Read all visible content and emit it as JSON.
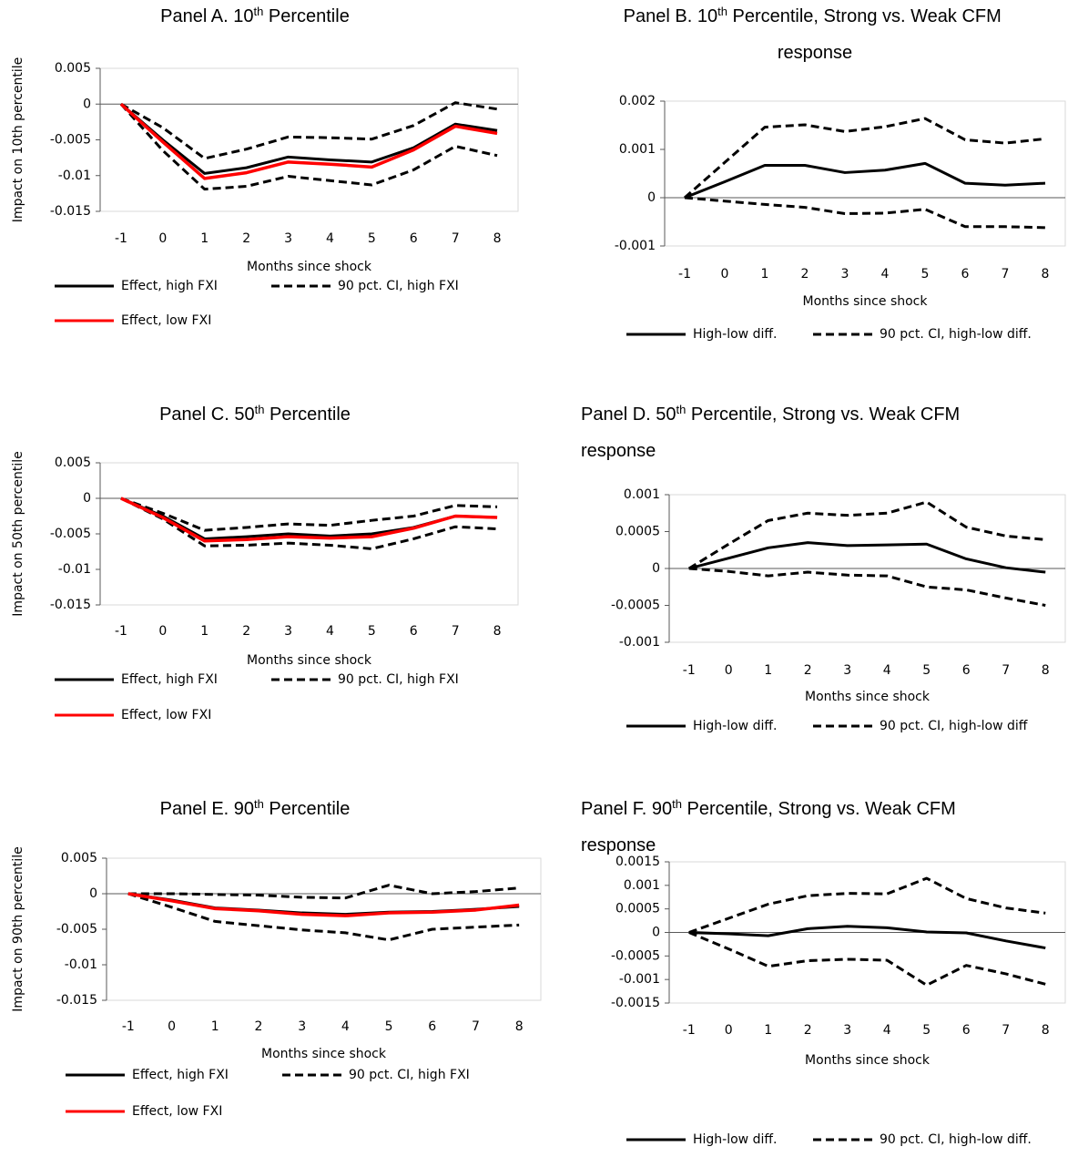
{
  "chart_data": [
    {
      "type": "line",
      "title": "Panel A. 10th Percentile",
      "x": [
        -1,
        0,
        1,
        2,
        3,
        4,
        5,
        6,
        7,
        8
      ],
      "xlim": [
        -1.5,
        8.5
      ],
      "ylim": [
        -0.015,
        0.005
      ],
      "yticks": [
        0.005,
        0,
        -0.005,
        -0.01,
        -0.015
      ],
      "xlabel": "Months since shock",
      "ylabel": "Impact on 10th percentile",
      "series": [
        {
          "name": "Effect, high FXI",
          "color": "#000000",
          "line_style": "solid",
          "values": [
            0,
            -0.005,
            -0.0097,
            -0.0089,
            -0.0074,
            -0.0078,
            -0.0081,
            -0.0061,
            -0.0028,
            -0.0037
          ]
        },
        {
          "name": "90 pct. CI, high FXI",
          "color": "#000000",
          "line_style": "dashed",
          "upper": [
            0,
            -0.0033,
            -0.0076,
            -0.0063,
            -0.0046,
            -0.0047,
            -0.0049,
            -0.003,
            0.0002,
            -0.0007
          ],
          "lower": [
            0,
            -0.0065,
            -0.0119,
            -0.0115,
            -0.0101,
            -0.0107,
            -0.0113,
            -0.0092,
            -0.0059,
            -0.0072
          ]
        },
        {
          "name": "Effect, low FXI",
          "color": "#ff0000",
          "line_style": "solid",
          "values": [
            0,
            -0.0053,
            -0.0104,
            -0.0096,
            -0.0081,
            -0.0084,
            -0.0088,
            -0.0064,
            -0.0031,
            -0.0041
          ]
        }
      ]
    },
    {
      "type": "line",
      "title": "Panel B. 10th Percentile, Strong vs. Weak CFM response",
      "x": [
        -1,
        0,
        1,
        2,
        3,
        4,
        5,
        6,
        7,
        8
      ],
      "xlim": [
        -1.5,
        8.5
      ],
      "ylim": [
        -0.001,
        0.002
      ],
      "yticks": [
        0.002,
        0.001,
        0,
        -0.001
      ],
      "xlabel": "Months since shock",
      "series": [
        {
          "name": "High-low diff.",
          "color": "#000000",
          "line_style": "solid",
          "values": [
            0,
            0.00033,
            0.00067,
            0.00067,
            0.00052,
            0.00057,
            0.00071,
            0.0003,
            0.00026,
            0.0003
          ]
        },
        {
          "name": "90 pct. CI, high-low diff.",
          "color": "#000000",
          "line_style": "dashed",
          "upper": [
            0,
            0.00073,
            0.00146,
            0.00151,
            0.00137,
            0.00147,
            0.00164,
            0.0012,
            0.00113,
            0.00122
          ],
          "lower": [
            0,
            -7e-05,
            -0.00014,
            -0.0002,
            -0.00033,
            -0.00032,
            -0.00024,
            -0.0006,
            -0.0006,
            -0.00062
          ]
        }
      ]
    },
    {
      "type": "line",
      "title": "Panel C. 50th Percentile",
      "x": [
        -1,
        0,
        1,
        2,
        3,
        4,
        5,
        6,
        7,
        8
      ],
      "xlim": [
        -1.5,
        8.5
      ],
      "ylim": [
        -0.015,
        0.005
      ],
      "yticks": [
        0.005,
        0,
        -0.005,
        -0.01,
        -0.015
      ],
      "xlabel": "Months since shock",
      "ylabel": "Impact on 50th percentile",
      "series": [
        {
          "name": "Effect, high FXI",
          "color": "#000000",
          "line_style": "solid",
          "values": [
            0,
            -0.0025,
            -0.0057,
            -0.0054,
            -0.005,
            -0.0053,
            -0.005,
            -0.0041,
            -0.0025,
            -0.0027
          ]
        },
        {
          "name": "90 pct. CI, high FXI",
          "color": "#000000",
          "line_style": "dashed",
          "upper": [
            0,
            -0.0021,
            -0.0045,
            -0.0041,
            -0.0036,
            -0.0038,
            -0.0031,
            -0.0025,
            -0.001,
            -0.0012
          ],
          "lower": [
            0,
            -0.0029,
            -0.0067,
            -0.0066,
            -0.0063,
            -0.0066,
            -0.0071,
            -0.0057,
            -0.004,
            -0.0043
          ]
        },
        {
          "name": "Effect, low FXI",
          "color": "#ff0000",
          "line_style": "solid",
          "values": [
            0,
            -0.0027,
            -0.006,
            -0.0058,
            -0.0054,
            -0.0056,
            -0.0054,
            -0.0042,
            -0.0025,
            -0.0027
          ]
        }
      ]
    },
    {
      "type": "line",
      "title": "Panel D. 50th Percentile, Strong vs. Weak CFM response",
      "x": [
        -1,
        0,
        1,
        2,
        3,
        4,
        5,
        6,
        7,
        8
      ],
      "xlim": [
        -1.5,
        8.5
      ],
      "ylim": [
        -0.001,
        0.001
      ],
      "yticks": [
        0.001,
        0.0005,
        0,
        -0.0005,
        -0.001
      ],
      "xlabel": "Months since shock",
      "series": [
        {
          "name": "High-low diff.",
          "color": "#000000",
          "line_style": "solid",
          "values": [
            0,
            0.00014,
            0.00028,
            0.00035,
            0.00031,
            0.00032,
            0.00033,
            0.00013,
            1e-05,
            -5e-05
          ]
        },
        {
          "name": "90 pct. CI, high-low diff",
          "color": "#000000",
          "line_style": "dashed",
          "upper": [
            0,
            0.00033,
            0.00065,
            0.00075,
            0.00072,
            0.00075,
            0.0009,
            0.00056,
            0.00044,
            0.00039
          ],
          "lower": [
            0,
            -4e-05,
            -0.0001,
            -5e-05,
            -9e-05,
            -0.0001,
            -0.00025,
            -0.00029,
            -0.0004,
            -0.0005
          ]
        }
      ]
    },
    {
      "type": "line",
      "title": "Panel E. 90th Percentile",
      "x": [
        -1,
        0,
        1,
        2,
        3,
        4,
        5,
        6,
        7,
        8
      ],
      "xlim": [
        -1.5,
        8.5
      ],
      "ylim": [
        -0.015,
        0.005
      ],
      "yticks": [
        0.005,
        0,
        -0.005,
        -0.01,
        -0.015
      ],
      "xlabel": "Months since shock",
      "ylabel": "Impact on 90th percentile",
      "series": [
        {
          "name": "Effect, high FXI",
          "color": "#000000",
          "line_style": "solid",
          "values": [
            0,
            -0.0009,
            -0.002,
            -0.0023,
            -0.0027,
            -0.0029,
            -0.0026,
            -0.0025,
            -0.0022,
            -0.0018
          ]
        },
        {
          "name": "90 pct. CI, high FXI",
          "color": "#000000",
          "line_style": "dashed",
          "upper": [
            0,
            0,
            -0.0001,
            -0.0002,
            -0.0005,
            -0.0006,
            0.0012,
            0,
            0.0003,
            0.0008
          ],
          "lower": [
            0,
            -0.0019,
            -0.0039,
            -0.0045,
            -0.0051,
            -0.0055,
            -0.0065,
            -0.005,
            -0.0047,
            -0.0044
          ]
        },
        {
          "name": "Effect, low FXI",
          "color": "#ff0000",
          "line_style": "solid",
          "values": [
            0,
            -0.001,
            -0.0021,
            -0.0024,
            -0.0029,
            -0.0031,
            -0.0027,
            -0.0026,
            -0.0023,
            -0.0016
          ]
        }
      ]
    },
    {
      "type": "line",
      "title": "Panel F. 90th Percentile, Strong vs. Weak CFM response",
      "x": [
        -1,
        0,
        1,
        2,
        3,
        4,
        5,
        6,
        7,
        8
      ],
      "xlim": [
        -1.5,
        8.5
      ],
      "ylim": [
        -0.0015,
        0.0015
      ],
      "yticks": [
        0.0015,
        0.001,
        0.0005,
        0,
        -0.0005,
        -0.001,
        -0.0015
      ],
      "xlabel": "Months since shock",
      "series": [
        {
          "name": "High-low diff.",
          "color": "#000000",
          "line_style": "solid",
          "values": [
            0,
            -3e-05,
            -7e-05,
            8e-05,
            0.00013,
            0.0001,
            1e-05,
            -1e-05,
            -0.00018,
            -0.00033
          ]
        },
        {
          "name": "90 pct. CI, high-low diff.",
          "color": "#000000",
          "line_style": "dashed",
          "upper": [
            0,
            0.0003,
            0.0006,
            0.00078,
            0.00083,
            0.00082,
            0.00115,
            0.00072,
            0.00052,
            0.00041
          ],
          "lower": [
            0,
            -0.00035,
            -0.00072,
            -0.0006,
            -0.00057,
            -0.00059,
            -0.00112,
            -0.0007,
            -0.00088,
            -0.0011
          ]
        }
      ]
    }
  ]
}
